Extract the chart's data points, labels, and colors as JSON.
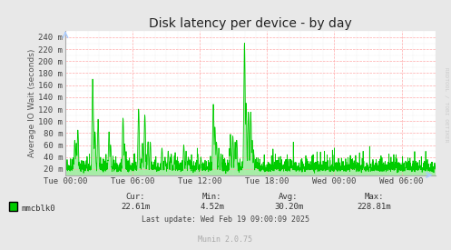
{
  "title": "Disk latency per device - by day",
  "ylabel": "Average IO Wait (seconds)",
  "background_color": "#e8e8e8",
  "plot_bg_color": "#ffffff",
  "line_color": "#00cc00",
  "fill_color": "#00cc00",
  "grid_color_major": "#ffaaaa",
  "grid_color_minor": "#dddddd",
  "ytick_labels": [
    "20 m",
    "40 m",
    "60 m",
    "80 m",
    "100 m",
    "120 m",
    "140 m",
    "160 m",
    "180 m",
    "200 m",
    "220 m",
    "240 m"
  ],
  "ytick_values": [
    0.02,
    0.04,
    0.06,
    0.08,
    0.1,
    0.12,
    0.14,
    0.16,
    0.18,
    0.2,
    0.22,
    0.24
  ],
  "xtick_labels": [
    "Tue 00:00",
    "Tue 06:00",
    "Tue 12:00",
    "Tue 18:00",
    "Wed 00:00",
    "Wed 06:00"
  ],
  "xtick_positions": [
    0,
    21600,
    43200,
    64800,
    86400,
    108000
  ],
  "xmin": 0,
  "xmax": 118800,
  "ymin": 0.01,
  "ymax": 0.25,
  "legend_label": "mmcblk0",
  "cur_label": "Cur:",
  "cur_val": "22.61m",
  "min_label": "Min:",
  "min_val": "4.52m",
  "avg_label": "Avg:",
  "avg_val": "30.20m",
  "max_label": "Max:",
  "max_val": "228.81m",
  "last_update": "Last update: Wed Feb 19 09:00:09 2025",
  "munin_label": "Munin 2.0.75",
  "rrdtool_label": "RRDTOOL / TOBI OETIKER",
  "title_fontsize": 10,
  "axis_fontsize": 6.5,
  "legend_fontsize": 6.5,
  "footer_fontsize": 6
}
